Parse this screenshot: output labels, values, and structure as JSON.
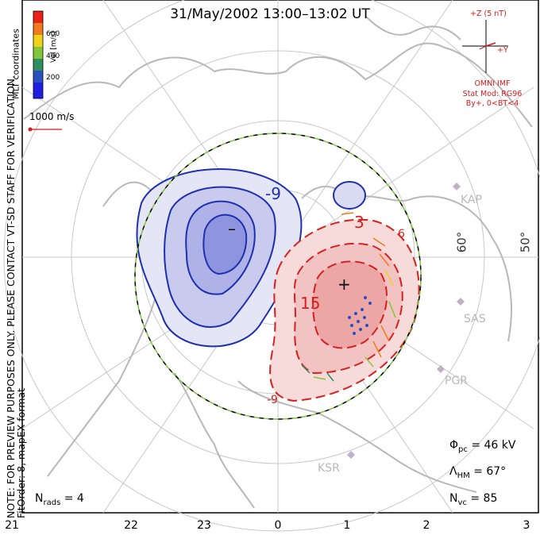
{
  "title": "31/May/2002 13:00–13:02 UT",
  "side_note": {
    "line1": "NOTE: FOR PREVIEW PURPOSES ONLY. PLEASE CONTACT VT-SD STAFF FOR VERIFICATION.",
    "line2": "FitOrder: 8, mapEX format"
  },
  "coord_label": "MLT coordinates",
  "colorbar": {
    "label": "Vel [m/s]",
    "ticks": [
      "600",
      "400",
      "200"
    ],
    "colors": [
      "#e8221b",
      "#f07b1c",
      "#f0d21b",
      "#84c63b",
      "#2f8f5e",
      "#2a4fbf",
      "#1f1fe0"
    ]
  },
  "reference_vector": "1000 m/s",
  "imf": {
    "z_label": "+Z (5 nT)",
    "y_label": "+Y",
    "source": "OMNI IMF",
    "model": "Stat Mod: RG96",
    "condition": "By+, 0<BT<4"
  },
  "stats": {
    "phi_symbol": "Φ",
    "phi_sub": "pc",
    "phi_value": "= 46 kV",
    "lambda_symbol": "Λ",
    "lambda_sub": "HM",
    "lambda_value": "= 67°",
    "nvc_symbol": "N",
    "nvc_sub": "vc",
    "nvc_value": "= 85",
    "nrads_symbol": "N",
    "nrads_sub": "rads",
    "nrads_value": "= 4"
  },
  "mlt_ticks": [
    "21",
    "22",
    "23",
    "0",
    "1",
    "2",
    "3"
  ],
  "radars": [
    "KAP",
    "SAS",
    "PGR",
    "KSR"
  ],
  "latitudes": [
    "60°",
    "50°"
  ],
  "contour_labels": {
    "neg": "-9",
    "pos_small": "3",
    "pos_big": "15",
    "bottom": "-9",
    "six": "6"
  },
  "extrema": {
    "min": "–",
    "max": "+"
  },
  "colors": {
    "negative": "#1f2fb0",
    "positive": "#d62020",
    "boundary_dash": "#7dc242",
    "grid": "#c8c8c8",
    "coast": "#b8b8b8",
    "imf": "#d81b1b"
  }
}
